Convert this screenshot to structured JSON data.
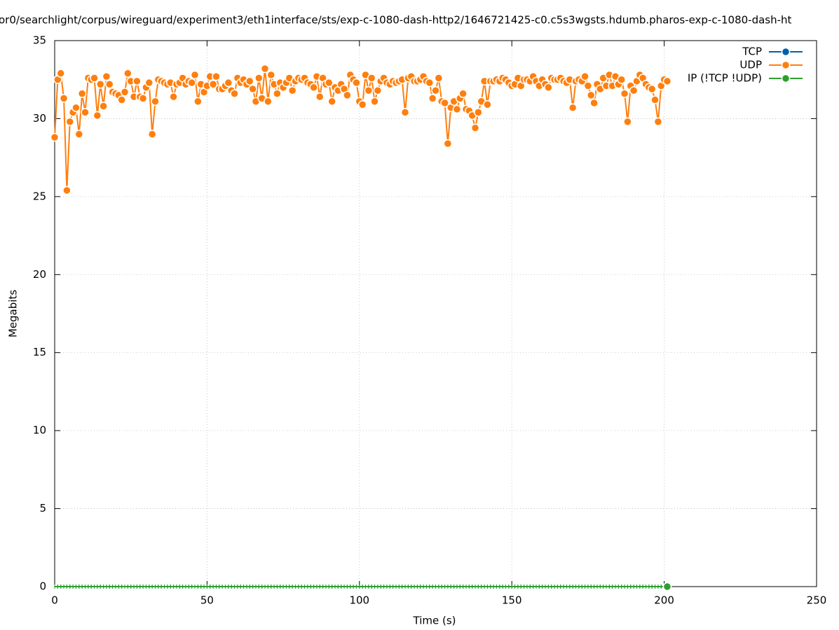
{
  "chart_data": {
    "type": "line",
    "title": "or0/searchlight/corpus/wireguard/experiment3/eth1interface/sts/exp-c-1080-dash-http2/1646721425-c0.c5s3wgsts.hdumb.pharos-exp-c-1080-dash-ht",
    "xlabel": "Time (s)",
    "ylabel": "Megabits",
    "xlim": [
      0,
      250
    ],
    "ylim": [
      0,
      35
    ],
    "xticks": [
      0,
      50,
      100,
      150,
      200,
      250
    ],
    "yticks": [
      0,
      5,
      10,
      15,
      20,
      25,
      30,
      35
    ],
    "grid": true,
    "legend": "upper right",
    "x": [
      0,
      1,
      2,
      3,
      4,
      5,
      6,
      7,
      8,
      9,
      10,
      11,
      12,
      13,
      14,
      15,
      16,
      17,
      18,
      19,
      20,
      21,
      22,
      23,
      24,
      25,
      26,
      27,
      28,
      29,
      30,
      31,
      32,
      33,
      34,
      35,
      36,
      37,
      38,
      39,
      40,
      41,
      42,
      43,
      44,
      45,
      46,
      47,
      48,
      49,
      50,
      51,
      52,
      53,
      54,
      55,
      56,
      57,
      58,
      59,
      60,
      61,
      62,
      63,
      64,
      65,
      66,
      67,
      68,
      69,
      70,
      71,
      72,
      73,
      74,
      75,
      76,
      77,
      78,
      79,
      80,
      81,
      82,
      83,
      84,
      85,
      86,
      87,
      88,
      89,
      90,
      91,
      92,
      93,
      94,
      95,
      96,
      97,
      98,
      99,
      100,
      101,
      102,
      103,
      104,
      105,
      106,
      107,
      108,
      109,
      110,
      111,
      112,
      113,
      114,
      115,
      116,
      117,
      118,
      119,
      120,
      121,
      122,
      123,
      124,
      125,
      126,
      127,
      128,
      129,
      130,
      131,
      132,
      133,
      134,
      135,
      136,
      137,
      138,
      139,
      140,
      141,
      142,
      143,
      144,
      145,
      146,
      147,
      148,
      149,
      150,
      151,
      152,
      153,
      154,
      155,
      156,
      157,
      158,
      159,
      160,
      161,
      162,
      163,
      164,
      165,
      166,
      167,
      168,
      169,
      170,
      171,
      172,
      173,
      174,
      175,
      176,
      177,
      178,
      179,
      180,
      181,
      182,
      183,
      184,
      185,
      186,
      187,
      188,
      189,
      190,
      191,
      192,
      193,
      194,
      195,
      196,
      197,
      198,
      199,
      200,
      201
    ],
    "series": [
      {
        "name": "TCP",
        "color": "#0060ad",
        "values": [
          0,
          0,
          0,
          0,
          0,
          0,
          0,
          0,
          0,
          0,
          0,
          0,
          0,
          0,
          0,
          0,
          0,
          0,
          0,
          0,
          0,
          0,
          0,
          0,
          0,
          0,
          0,
          0,
          0,
          0,
          0,
          0,
          0,
          0,
          0,
          0,
          0,
          0,
          0,
          0,
          0,
          0,
          0,
          0,
          0,
          0,
          0,
          0,
          0,
          0,
          0,
          0,
          0,
          0,
          0,
          0,
          0,
          0,
          0,
          0,
          0,
          0,
          0,
          0,
          0,
          0,
          0,
          0,
          0,
          0,
          0,
          0,
          0,
          0,
          0,
          0,
          0,
          0,
          0,
          0,
          0,
          0,
          0,
          0,
          0,
          0,
          0,
          0,
          0,
          0,
          0,
          0,
          0,
          0,
          0,
          0,
          0,
          0,
          0,
          0,
          0,
          0,
          0,
          0,
          0,
          0,
          0,
          0,
          0,
          0,
          0,
          0,
          0,
          0,
          0,
          0,
          0,
          0,
          0,
          0,
          0,
          0,
          0,
          0,
          0,
          0,
          0,
          0,
          0,
          0,
          0,
          0,
          0,
          0,
          0,
          0,
          0,
          0,
          0,
          0,
          0,
          0,
          0,
          0,
          0,
          0,
          0,
          0,
          0,
          0,
          0,
          0,
          0,
          0,
          0,
          0,
          0,
          0,
          0,
          0,
          0,
          0,
          0,
          0,
          0,
          0,
          0,
          0,
          0,
          0,
          0,
          0,
          0,
          0,
          0,
          0,
          0,
          0,
          0,
          0,
          0,
          0,
          0,
          0,
          0,
          0,
          0,
          0,
          0,
          0,
          0,
          0,
          0,
          0,
          0,
          0,
          0,
          0,
          0,
          0,
          0,
          0
        ]
      },
      {
        "name": "UDP",
        "color": "#ff7f0e",
        "values": [
          28.8,
          32.5,
          32.9,
          31.3,
          25.4,
          29.8,
          30.4,
          30.7,
          29.0,
          31.6,
          30.4,
          32.6,
          32.5,
          32.6,
          30.2,
          32.2,
          30.8,
          32.7,
          32.2,
          31.7,
          31.6,
          31.5,
          31.2,
          31.7,
          32.9,
          32.4,
          31.4,
          32.4,
          31.4,
          31.3,
          32.0,
          32.3,
          29.0,
          31.1,
          32.5,
          32.4,
          32.3,
          32.2,
          32.3,
          31.4,
          32.2,
          32.3,
          32.6,
          32.2,
          32.4,
          32.3,
          32.8,
          31.1,
          32.2,
          31.7,
          32.1,
          32.7,
          32.2,
          32.7,
          31.9,
          31.9,
          32.1,
          32.3,
          31.8,
          31.6,
          32.6,
          32.3,
          32.5,
          32.2,
          32.4,
          31.9,
          31.1,
          32.6,
          31.3,
          33.2,
          31.1,
          32.8,
          32.2,
          31.6,
          32.3,
          32.0,
          32.3,
          32.6,
          31.8,
          32.4,
          32.6,
          32.5,
          32.6,
          32.3,
          32.2,
          32.0,
          32.7,
          31.4,
          32.6,
          32.2,
          32.3,
          31.1,
          32.0,
          31.8,
          32.2,
          31.9,
          31.5,
          32.8,
          32.5,
          32.3,
          31.1,
          30.9,
          32.8,
          31.8,
          32.6,
          31.1,
          31.8,
          32.4,
          32.6,
          32.3,
          32.2,
          32.4,
          32.3,
          32.4,
          32.5,
          30.4,
          32.6,
          32.7,
          32.4,
          32.4,
          32.5,
          32.7,
          32.4,
          32.3,
          31.3,
          31.8,
          32.6,
          31.1,
          31.0,
          28.4,
          30.7,
          31.1,
          30.6,
          31.3,
          31.6,
          30.6,
          30.5,
          30.2,
          29.4,
          30.4,
          31.1,
          32.4,
          30.9,
          32.4,
          32.4,
          32.5,
          32.4,
          32.6,
          32.5,
          32.3,
          32.1,
          32.2,
          32.6,
          32.1,
          32.5,
          32.5,
          32.4,
          32.7,
          32.4,
          32.1,
          32.5,
          32.2,
          32.0,
          32.6,
          32.5,
          32.5,
          32.6,
          32.4,
          32.3,
          32.5,
          30.7,
          32.4,
          32.5,
          32.4,
          32.7,
          32.1,
          31.5,
          31.0,
          32.2,
          31.9,
          32.6,
          32.1,
          32.8,
          32.1,
          32.7,
          32.2,
          32.5,
          31.6,
          29.8,
          32.1,
          31.8,
          32.4,
          32.8,
          32.6,
          32.2,
          32.0,
          31.9,
          31.2,
          29.8,
          32.1,
          32.5,
          32.4
        ]
      },
      {
        "name": "IP (!TCP  !UDP)",
        "color": "#2ca02c",
        "values": [
          0,
          0,
          0,
          0,
          0,
          0,
          0,
          0,
          0,
          0,
          0,
          0,
          0,
          0,
          0,
          0,
          0,
          0,
          0,
          0,
          0,
          0,
          0,
          0,
          0,
          0,
          0,
          0,
          0,
          0,
          0,
          0,
          0,
          0,
          0,
          0,
          0,
          0,
          0,
          0,
          0,
          0,
          0,
          0,
          0,
          0,
          0,
          0,
          0,
          0,
          0,
          0,
          0,
          0,
          0,
          0,
          0,
          0,
          0,
          0,
          0,
          0,
          0,
          0,
          0,
          0,
          0,
          0,
          0,
          0,
          0,
          0,
          0,
          0,
          0,
          0,
          0,
          0,
          0,
          0,
          0,
          0,
          0,
          0,
          0,
          0,
          0,
          0,
          0,
          0,
          0,
          0,
          0,
          0,
          0,
          0,
          0,
          0,
          0,
          0,
          0,
          0,
          0,
          0,
          0,
          0,
          0,
          0,
          0,
          0,
          0,
          0,
          0,
          0,
          0,
          0,
          0,
          0,
          0,
          0,
          0,
          0,
          0,
          0,
          0,
          0,
          0,
          0,
          0,
          0,
          0,
          0,
          0,
          0,
          0,
          0,
          0,
          0,
          0,
          0,
          0,
          0,
          0,
          0,
          0,
          0,
          0,
          0,
          0,
          0,
          0,
          0,
          0,
          0,
          0,
          0,
          0,
          0,
          0,
          0,
          0,
          0,
          0,
          0,
          0,
          0,
          0,
          0,
          0,
          0,
          0,
          0,
          0,
          0,
          0,
          0,
          0,
          0,
          0,
          0,
          0,
          0,
          0,
          0,
          0,
          0,
          0,
          0,
          0,
          0,
          0,
          0,
          0,
          0,
          0,
          0,
          0,
          0,
          0,
          0,
          0,
          0
        ]
      }
    ]
  }
}
